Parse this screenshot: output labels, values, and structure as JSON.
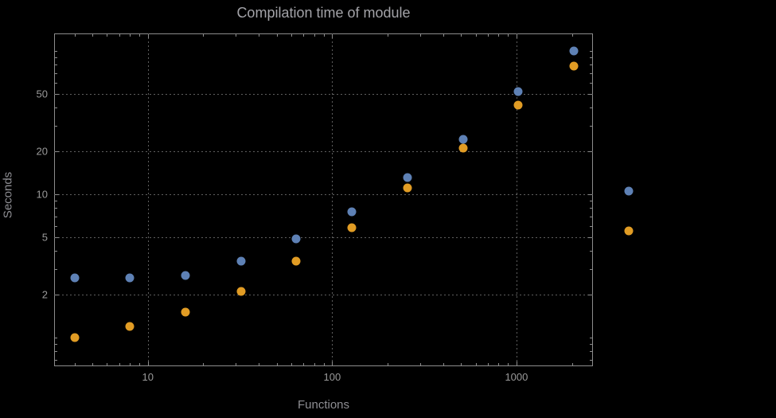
{
  "title": "Compilation time of module",
  "chart_data": {
    "type": "scatter",
    "title": "Compilation time of module",
    "xlabel": "Functions",
    "ylabel": "Seconds",
    "x_scale": "log",
    "y_scale": "log",
    "xlim": [
      3.1,
      2600
    ],
    "ylim": [
      0.63,
      132
    ],
    "x_tick_labels": [
      "10",
      "100",
      "1000"
    ],
    "x_tick_values": [
      10,
      100,
      1000
    ],
    "y_tick_labels": [
      "2",
      "5",
      "10",
      "20",
      "50"
    ],
    "y_tick_values": [
      2,
      5,
      10,
      20,
      50
    ],
    "grid": "dotted",
    "legend_position": "right-outside",
    "colors": {
      "background": "#000000",
      "frame": "#8c8c8c",
      "grid": "#5f5f5f",
      "title": "#a3a3a8",
      "axis_label": "#8e8e93",
      "tick_label": "#9a9a9a",
      "series_blue": "#5e81b5",
      "series_orange": "#e19c24"
    },
    "series": [
      {
        "name": "blue",
        "color": "#5e81b5",
        "x": [
          4,
          8,
          16,
          32,
          64,
          128,
          256,
          512,
          1024,
          2048
        ],
        "y": [
          2.6,
          2.6,
          2.7,
          3.4,
          4.9,
          7.5,
          13,
          24,
          52,
          100
        ]
      },
      {
        "name": "orange",
        "color": "#e19c24",
        "x": [
          4,
          8,
          16,
          32,
          64,
          128,
          256,
          512,
          1024,
          2048
        ],
        "y": [
          1.0,
          1.2,
          1.5,
          2.1,
          3.4,
          5.8,
          11,
          21,
          42,
          78
        ]
      }
    ],
    "legend_markers": [
      {
        "series": "blue",
        "color": "#5e81b5"
      },
      {
        "series": "orange",
        "color": "#e19c24"
      }
    ]
  }
}
